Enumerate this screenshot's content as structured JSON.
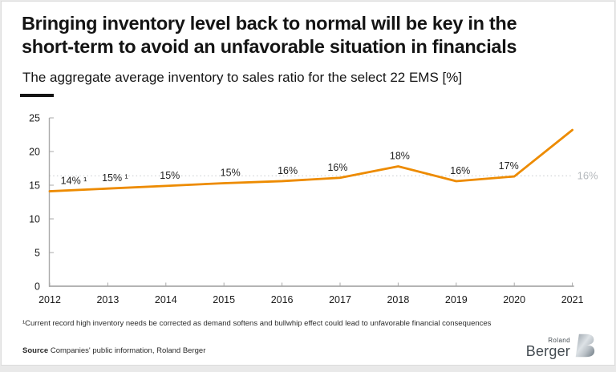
{
  "slide": {
    "title_line1": "Bringing inventory level back to normal will be key in the",
    "title_line2": "short-term to avoid an unfavorable situation in financials",
    "subtitle": "The aggregate average inventory to sales ratio for the select 22 EMS [%]",
    "footnote": "¹Current record high inventory needs be corrected as demand softens and bullwhip effect could lead to unfavorable financial consequences",
    "source_label": "Source",
    "source_text": " Companies' public information, Roland Berger",
    "logo": {
      "line1": "Roland",
      "line2": "Berger"
    }
  },
  "chart_data": {
    "type": "line",
    "title": "The aggregate average inventory to sales ratio for the select 22 EMS [%]",
    "x": [
      2012,
      2013,
      2014,
      2015,
      2016,
      2017,
      2018,
      2019,
      2020,
      2021
    ],
    "series": [
      {
        "name": "Aggregate average inventory to sales ratio",
        "values": [
          14,
          15,
          15,
          15,
          16,
          16,
          18,
          16,
          17,
          23
        ],
        "values_plot": [
          14.1,
          14.5,
          14.9,
          15.3,
          15.6,
          16.1,
          17.8,
          15.6,
          16.3,
          23.2
        ],
        "point_labels": [
          "14% ¹",
          "15% ¹",
          "15%",
          "15%",
          "16%",
          "16%",
          "18%",
          "16%",
          "17%",
          ""
        ],
        "color": "#ED8B00"
      }
    ],
    "xlabel": "",
    "ylabel": "",
    "ylim": [
      0,
      25
    ],
    "yticks": [
      0,
      5,
      10,
      15,
      20,
      25
    ],
    "grid": false,
    "legend": "none",
    "reference_line": {
      "value": 16.4,
      "label": "16%",
      "style": "dotted",
      "color": "#c6c9cc",
      "label_color": "#b4b8bc"
    },
    "colors": {
      "axis": "#a9a9a9",
      "tick_label": "#1a1a1a",
      "point_label": "#1f1f1f"
    },
    "label_dx": [
      30,
      9,
      5,
      8,
      7,
      -3,
      2,
      5,
      -7,
      0
    ]
  }
}
